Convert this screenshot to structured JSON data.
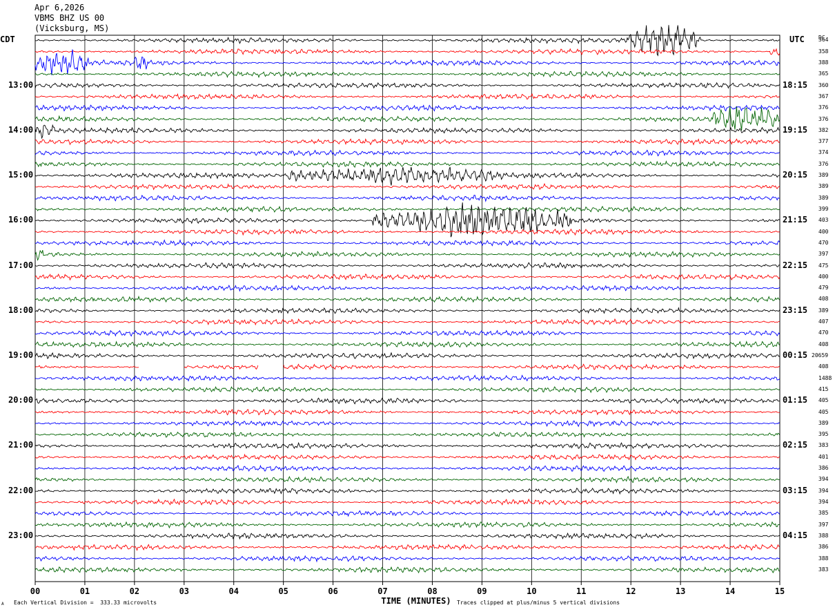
{
  "header": {
    "date": "Apr 6,2026",
    "station": "VBMS BHZ US 00",
    "location": "(Vicksburg, MS)"
  },
  "left_tz": "CDT",
  "right_tz": "UTC",
  "dc_header": "DC",
  "footer": {
    "scale": "Each Vertical Division =  333.33 microvolts",
    "clip": "Traces clipped at plus/minus 5 vertical divisions",
    "corner_mark": "A"
  },
  "chart_data": {
    "type": "line",
    "title": "",
    "xlabel": "TIME (MINUTES)",
    "ylabel": "",
    "xlim": [
      0,
      15
    ],
    "x_ticks": [
      "00",
      "01",
      "02",
      "03",
      "04",
      "05",
      "06",
      "07",
      "08",
      "09",
      "10",
      "11",
      "12",
      "13",
      "14",
      "15"
    ],
    "trace_minutes": 15,
    "trace_count": 48,
    "trace_colors": [
      "#000000",
      "#ff0000",
      "#0000ff",
      "#006400"
    ],
    "grid": true,
    "left_hour_labels": [
      "13:00",
      "14:00",
      "15:00",
      "16:00",
      "17:00",
      "18:00",
      "19:00",
      "20:00",
      "21:00",
      "22:00",
      "23:00"
    ],
    "right_hour_labels": [
      "18:15",
      "19:15",
      "20:15",
      "21:15",
      "22:15",
      "23:15",
      "00:15",
      "01:15",
      "02:15",
      "03:15",
      "04:15"
    ],
    "hour_label_first_trace": 4,
    "hour_label_every": 4,
    "dc_offsets": [
      "364",
      "358",
      "388",
      "365",
      "360",
      "367",
      "376",
      "376",
      "382",
      "377",
      "374",
      "376",
      "389",
      "389",
      "389",
      "399",
      "403",
      "400",
      "470",
      "397",
      "475",
      "400",
      "479",
      "408",
      "389",
      "407",
      "470",
      "408",
      "20659",
      "408",
      "1488",
      "415",
      "405",
      "405",
      "389",
      "395",
      "383",
      "401",
      "386",
      "394",
      "394",
      "394",
      "385",
      "397",
      "388",
      "386",
      "388",
      "383"
    ],
    "events": [
      {
        "trace": 0,
        "start_min": 11.9,
        "end_min": 13.4,
        "amplitude": 3.2
      },
      {
        "trace": 1,
        "start_min": 14.8,
        "end_min": 15.0,
        "amplitude": 1.6
      },
      {
        "trace": 2,
        "start_min": 0.0,
        "end_min": 1.1,
        "amplitude": 2.6
      },
      {
        "trace": 2,
        "start_min": 2.0,
        "end_min": 2.3,
        "amplitude": 1.3
      },
      {
        "trace": 7,
        "start_min": 13.6,
        "end_min": 15.0,
        "amplitude": 2.6
      },
      {
        "trace": 8,
        "start_min": 0.0,
        "end_min": 0.4,
        "amplitude": 1.6
      },
      {
        "trace": 12,
        "start_min": 5.1,
        "end_min": 9.4,
        "amplitude": 1.7
      },
      {
        "trace": 16,
        "start_min": 6.8,
        "end_min": 10.8,
        "amplitude": 3.2
      },
      {
        "trace": 19,
        "start_min": 0.0,
        "end_min": 0.2,
        "amplitude": 1.2
      }
    ],
    "gaps": [
      {
        "trace": 29,
        "start_min": 2.1,
        "end_min": 3.0
      },
      {
        "trace": 29,
        "start_min": 4.5,
        "end_min": 5.0
      }
    ]
  }
}
